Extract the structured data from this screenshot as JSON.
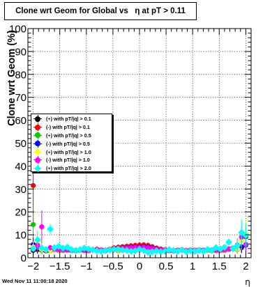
{
  "title": "Clone wrt Geom for Global vs   η at pT > 0.11",
  "timestamp": "Wed Nov 11 11:00:18 2020",
  "chart_data": {
    "type": "scatter",
    "title": "Clone wrt Geom for Global vs   η at pT > 0.11",
    "xlabel": "η",
    "ylabel": "Clone wrt Geom (%)",
    "xlim": [
      -2.1,
      2.1
    ],
    "ylim": [
      0,
      100
    ],
    "xticks": [
      -2,
      -1.5,
      -1,
      -0.5,
      0,
      0.5,
      1,
      1.5,
      2
    ],
    "xtick_labels": [
      "−2",
      "−1.5",
      "−1",
      "−0.5",
      "0",
      "0.5",
      "1",
      "1.5",
      "2"
    ],
    "yticks": [
      0,
      10,
      20,
      30,
      40,
      50,
      60,
      70,
      80,
      90,
      100
    ],
    "ytick_labels": [
      "0",
      "10",
      "20",
      "30",
      "40",
      "50",
      "60",
      "70",
      "80",
      "90",
      "100"
    ],
    "grid": true,
    "legend_position": "left-middle",
    "series": [
      {
        "name": "(+) with pT/|q| > 0.1",
        "color": "#000000",
        "marker": "circle",
        "x": [
          -2.0,
          -1.92,
          -1.84,
          -1.76,
          -1.68,
          -1.6,
          -1.52,
          -1.44,
          -1.36,
          -1.28,
          -1.2,
          -1.12,
          -1.04,
          -0.96,
          -0.88,
          -0.8,
          -0.72,
          -0.64,
          -0.56,
          -0.48,
          -0.4,
          -0.32,
          -0.24,
          -0.16,
          -0.08,
          0.0,
          0.08,
          0.16,
          0.24,
          0.32,
          0.4,
          0.48,
          0.56,
          0.64,
          0.72,
          0.8,
          0.88,
          0.96,
          1.04,
          1.12,
          1.2,
          1.28,
          1.36,
          1.44,
          1.52,
          1.6,
          1.68,
          1.76,
          1.84,
          1.92,
          2.0
        ],
        "y": [
          3.2,
          3.6,
          3.3,
          3.0,
          3.1,
          3.5,
          3.2,
          3.1,
          3.3,
          3.1,
          3.0,
          3.2,
          3.1,
          3.0,
          3.4,
          3.6,
          3.1,
          3.0,
          3.4,
          3.5,
          3.1,
          3.4,
          3.3,
          3.5,
          3.2,
          3.5,
          3.6,
          3.3,
          3.4,
          3.2,
          3.0,
          3.1,
          3.0,
          2.9,
          3.0,
          3.3,
          3.0,
          3.2,
          3.0,
          3.1,
          3.0,
          3.2,
          3.0,
          3.1,
          3.0,
          3.1,
          3.6,
          3.9,
          3.6,
          4.4,
          9.2
        ]
      },
      {
        "name": "(-) with pT/|q| > 0.1",
        "color": "#ff0000",
        "marker": "circle",
        "x": [
          -2.0,
          -1.92,
          -1.84,
          -1.76,
          -1.68,
          -1.6,
          -1.52,
          -1.44,
          -1.36,
          -1.28,
          -1.2,
          -1.12,
          -1.04,
          -0.96,
          -0.88,
          -0.8,
          -0.72,
          -0.64,
          -0.56,
          -0.48,
          -0.4,
          -0.32,
          -0.24,
          -0.16,
          -0.08,
          0.0,
          0.08,
          0.16,
          0.24,
          0.32,
          0.4,
          0.48,
          0.56,
          0.64,
          0.72,
          0.8,
          0.88,
          0.96,
          1.04,
          1.12,
          1.2,
          1.28,
          1.36,
          1.44,
          1.52,
          1.6,
          1.68,
          1.76,
          1.84,
          1.92,
          2.0
        ],
        "y": [
          31.5,
          5.6,
          3.6,
          3.5,
          3.4,
          3.8,
          3.7,
          3.5,
          3.6,
          3.4,
          3.3,
          3.5,
          3.4,
          3.3,
          3.6,
          3.8,
          3.5,
          3.4,
          3.8,
          4.3,
          4.6,
          4.8,
          5.0,
          5.2,
          5.4,
          5.5,
          5.6,
          5.4,
          4.8,
          4.2,
          3.8,
          3.6,
          3.4,
          3.3,
          3.4,
          3.6,
          3.3,
          3.5,
          3.4,
          3.5,
          3.4,
          3.6,
          3.4,
          3.5,
          3.5,
          3.6,
          4.0,
          4.3,
          4.1,
          4.8,
          9.4
        ]
      },
      {
        "name": "(+) with pT/|q| > 0.5",
        "color": "#00cc00",
        "marker": "circle",
        "x": [
          -2.0,
          -1.92,
          -1.84,
          -1.76,
          -1.68,
          -1.6,
          -1.52,
          -1.44,
          -1.36,
          -1.28,
          -1.2,
          -1.12,
          -1.04,
          -0.96,
          -0.88,
          -0.8,
          -0.72,
          -0.64,
          -0.56,
          -0.48,
          -0.4,
          -0.32,
          -0.24,
          -0.16,
          -0.08,
          0.0,
          0.08,
          0.16,
          0.24,
          0.32,
          0.4,
          0.48,
          0.56,
          0.64,
          0.72,
          0.8,
          0.88,
          0.96,
          1.04,
          1.12,
          1.2,
          1.28,
          1.36,
          1.44,
          1.52,
          1.6,
          1.68,
          1.76,
          1.84,
          1.92,
          2.0
        ],
        "y": [
          14.5,
          5.2,
          3.5,
          3.4,
          3.2,
          3.6,
          3.4,
          3.2,
          3.5,
          3.2,
          3.1,
          3.3,
          3.2,
          3.1,
          3.5,
          3.7,
          3.2,
          3.1,
          3.5,
          3.6,
          3.3,
          3.5,
          3.4,
          3.6,
          3.3,
          3.6,
          3.7,
          3.4,
          3.5,
          3.3,
          3.1,
          3.2,
          3.1,
          3.0,
          3.1,
          3.4,
          3.1,
          3.3,
          3.1,
          3.2,
          3.1,
          3.3,
          3.1,
          3.2,
          3.1,
          3.2,
          3.7,
          4.0,
          3.7,
          4.5,
          10.2
        ]
      },
      {
        "name": "(-) with pT/|q| > 0.5",
        "color": "#0000ff",
        "marker": "circle",
        "x": [
          -2.0,
          -1.92,
          -1.84,
          -1.76,
          -1.68,
          -1.6,
          -1.52,
          -1.44,
          -1.36,
          -1.28,
          -1.2,
          -1.12,
          -1.04,
          -0.96,
          -0.88,
          -0.8,
          -0.72,
          -0.64,
          -0.56,
          -0.48,
          -0.4,
          -0.32,
          -0.24,
          -0.16,
          -0.08,
          0.0,
          0.08,
          0.16,
          0.24,
          0.32,
          0.4,
          0.48,
          0.56,
          0.64,
          0.72,
          0.8,
          0.88,
          0.96,
          1.04,
          1.12,
          1.2,
          1.28,
          1.36,
          1.44,
          1.52,
          1.6,
          1.68,
          1.76,
          1.84,
          1.92,
          2.0
        ],
        "y": [
          5.8,
          4.6,
          3.4,
          3.3,
          3.2,
          3.6,
          3.5,
          3.3,
          3.4,
          3.2,
          3.1,
          3.3,
          3.2,
          3.1,
          3.5,
          3.6,
          3.3,
          3.2,
          3.5,
          3.9,
          4.0,
          4.2,
          4.3,
          4.5,
          4.6,
          4.7,
          4.8,
          4.6,
          4.2,
          3.8,
          3.5,
          3.4,
          3.2,
          3.1,
          3.2,
          3.4,
          3.1,
          3.3,
          3.2,
          3.3,
          3.2,
          3.4,
          3.2,
          3.3,
          3.3,
          3.4,
          3.8,
          4.1,
          3.9,
          4.6,
          5.5
        ]
      },
      {
        "name": "(+) with pT/|q| > 1.0",
        "color": "#ffff00",
        "marker": "diamond",
        "x": [
          -2.0,
          -1.92,
          -1.84,
          -1.76,
          -1.68,
          -1.6,
          -1.52,
          -1.44,
          -1.36,
          -1.28,
          -1.2,
          -1.12,
          -1.04,
          -0.96,
          -0.88,
          -0.8,
          -0.72,
          -0.64,
          -0.56,
          -0.48,
          -0.4,
          -0.32,
          -0.24,
          -0.16,
          -0.08,
          0.0,
          0.08,
          0.16,
          0.24,
          0.32,
          0.4,
          0.48,
          0.56,
          0.64,
          0.72,
          0.8,
          0.88,
          0.96,
          1.04,
          1.12,
          1.2,
          1.28,
          1.36,
          1.44,
          1.52,
          1.6,
          1.68,
          1.76,
          1.84,
          1.92,
          2.0
        ],
        "y": [
          4.6,
          7.2,
          3.6,
          3.4,
          3.3,
          3.8,
          3.5,
          3.3,
          3.6,
          3.3,
          3.2,
          3.4,
          3.3,
          3.2,
          3.6,
          3.8,
          3.3,
          3.2,
          3.6,
          3.7,
          3.4,
          3.6,
          3.5,
          3.7,
          3.4,
          3.7,
          3.8,
          3.5,
          3.6,
          3.4,
          3.2,
          3.3,
          3.2,
          3.1,
          3.2,
          3.5,
          3.2,
          3.4,
          3.2,
          3.3,
          3.2,
          3.4,
          3.2,
          3.3,
          3.2,
          3.3,
          3.8,
          4.1,
          3.8,
          7.5,
          10.5
        ]
      },
      {
        "name": "(-) with pT/|q| > 1.0",
        "color": "#ff00ff",
        "marker": "circle",
        "x": [
          -2.0,
          -1.92,
          -1.84,
          -1.76,
          -1.68,
          -1.6,
          -1.52,
          -1.44,
          -1.36,
          -1.28,
          -1.2,
          -1.12,
          -1.04,
          -0.96,
          -0.88,
          -0.8,
          -0.72,
          -0.64,
          -0.56,
          -0.48,
          -0.4,
          -0.32,
          -0.24,
          -0.16,
          -0.08,
          0.0,
          0.08,
          0.16,
          0.24,
          0.32,
          0.4,
          0.48,
          0.56,
          0.64,
          0.72,
          0.8,
          0.88,
          0.96,
          1.04,
          1.12,
          1.2,
          1.28,
          1.36,
          1.44,
          1.52,
          1.6,
          1.68,
          1.76,
          1.84,
          1.92,
          2.0
        ],
        "y": [
          3.6,
          5.4,
          13.5,
          3.6,
          4.4,
          3.9,
          3.6,
          3.4,
          3.5,
          3.3,
          3.2,
          3.4,
          3.3,
          3.2,
          3.5,
          3.7,
          3.4,
          3.3,
          3.6,
          3.9,
          4.0,
          4.1,
          4.2,
          4.3,
          4.4,
          4.4,
          4.5,
          4.3,
          4.0,
          3.7,
          3.4,
          3.3,
          3.2,
          3.1,
          3.2,
          3.4,
          3.1,
          3.3,
          3.2,
          3.3,
          3.2,
          3.4,
          3.2,
          3.3,
          3.3,
          3.4,
          3.8,
          4.1,
          5.5,
          9.0,
          5.8
        ]
      },
      {
        "name": "(+) with pT/|q| > 2.0",
        "color": "#00ffff",
        "marker": "diamond",
        "x": [
          -2.0,
          -1.92,
          -1.84,
          -1.76,
          -1.68,
          -1.6,
          -1.52,
          -1.44,
          -1.36,
          -1.28,
          -1.2,
          -1.12,
          -1.04,
          -0.96,
          -0.88,
          -0.8,
          -0.72,
          -0.64,
          -0.56,
          -0.48,
          -0.4,
          -0.32,
          -0.24,
          -0.16,
          -0.08,
          0.0,
          0.08,
          0.16,
          0.24,
          0.32,
          0.4,
          0.48,
          0.56,
          0.64,
          0.72,
          0.8,
          0.88,
          0.96,
          1.04,
          1.12,
          1.2,
          1.28,
          1.36,
          1.44,
          1.52,
          1.6,
          1.68,
          1.76,
          1.84,
          1.92,
          2.0
        ],
        "y": [
          4.0,
          7.8,
          4.2,
          3.6,
          12.5,
          4.4,
          5.0,
          4.2,
          4.6,
          3.6,
          3.2,
          3.6,
          4.2,
          3.8,
          3.4,
          3.0,
          2.8,
          3.2,
          3.4,
          3.6,
          3.8,
          3.4,
          3.2,
          2.8,
          3.0,
          3.6,
          3.2,
          2.4,
          2.6,
          3.0,
          2.6,
          2.8,
          3.6,
          3.2,
          2.8,
          3.4,
          2.6,
          3.0,
          2.8,
          3.2,
          2.8,
          3.6,
          3.2,
          4.4,
          3.8,
          4.6,
          6.8,
          4.0,
          5.2,
          11.0,
          9.8
        ]
      }
    ]
  },
  "legend": {
    "items": [
      {
        "label": "(+) with pT/|q| > 0.1",
        "color": "#000000",
        "marker": "circle"
      },
      {
        "label": "(-) with pT/|q| > 0.1",
        "color": "#ff0000",
        "marker": "circle"
      },
      {
        "label": "(+) with pT/|q| > 0.5",
        "color": "#00cc00",
        "marker": "circle"
      },
      {
        "label": "(-) with pT/|q| > 0.5",
        "color": "#0000ff",
        "marker": "circle"
      },
      {
        "label": "(+) with pT/|q| > 1.0",
        "color": "#ffff00",
        "marker": "diamond"
      },
      {
        "label": "(-) with pT/|q| > 1.0",
        "color": "#ff00ff",
        "marker": "circle"
      },
      {
        "label": "(+) with pT/|q| > 2.0",
        "color": "#00ffff",
        "marker": "diamond"
      }
    ]
  }
}
